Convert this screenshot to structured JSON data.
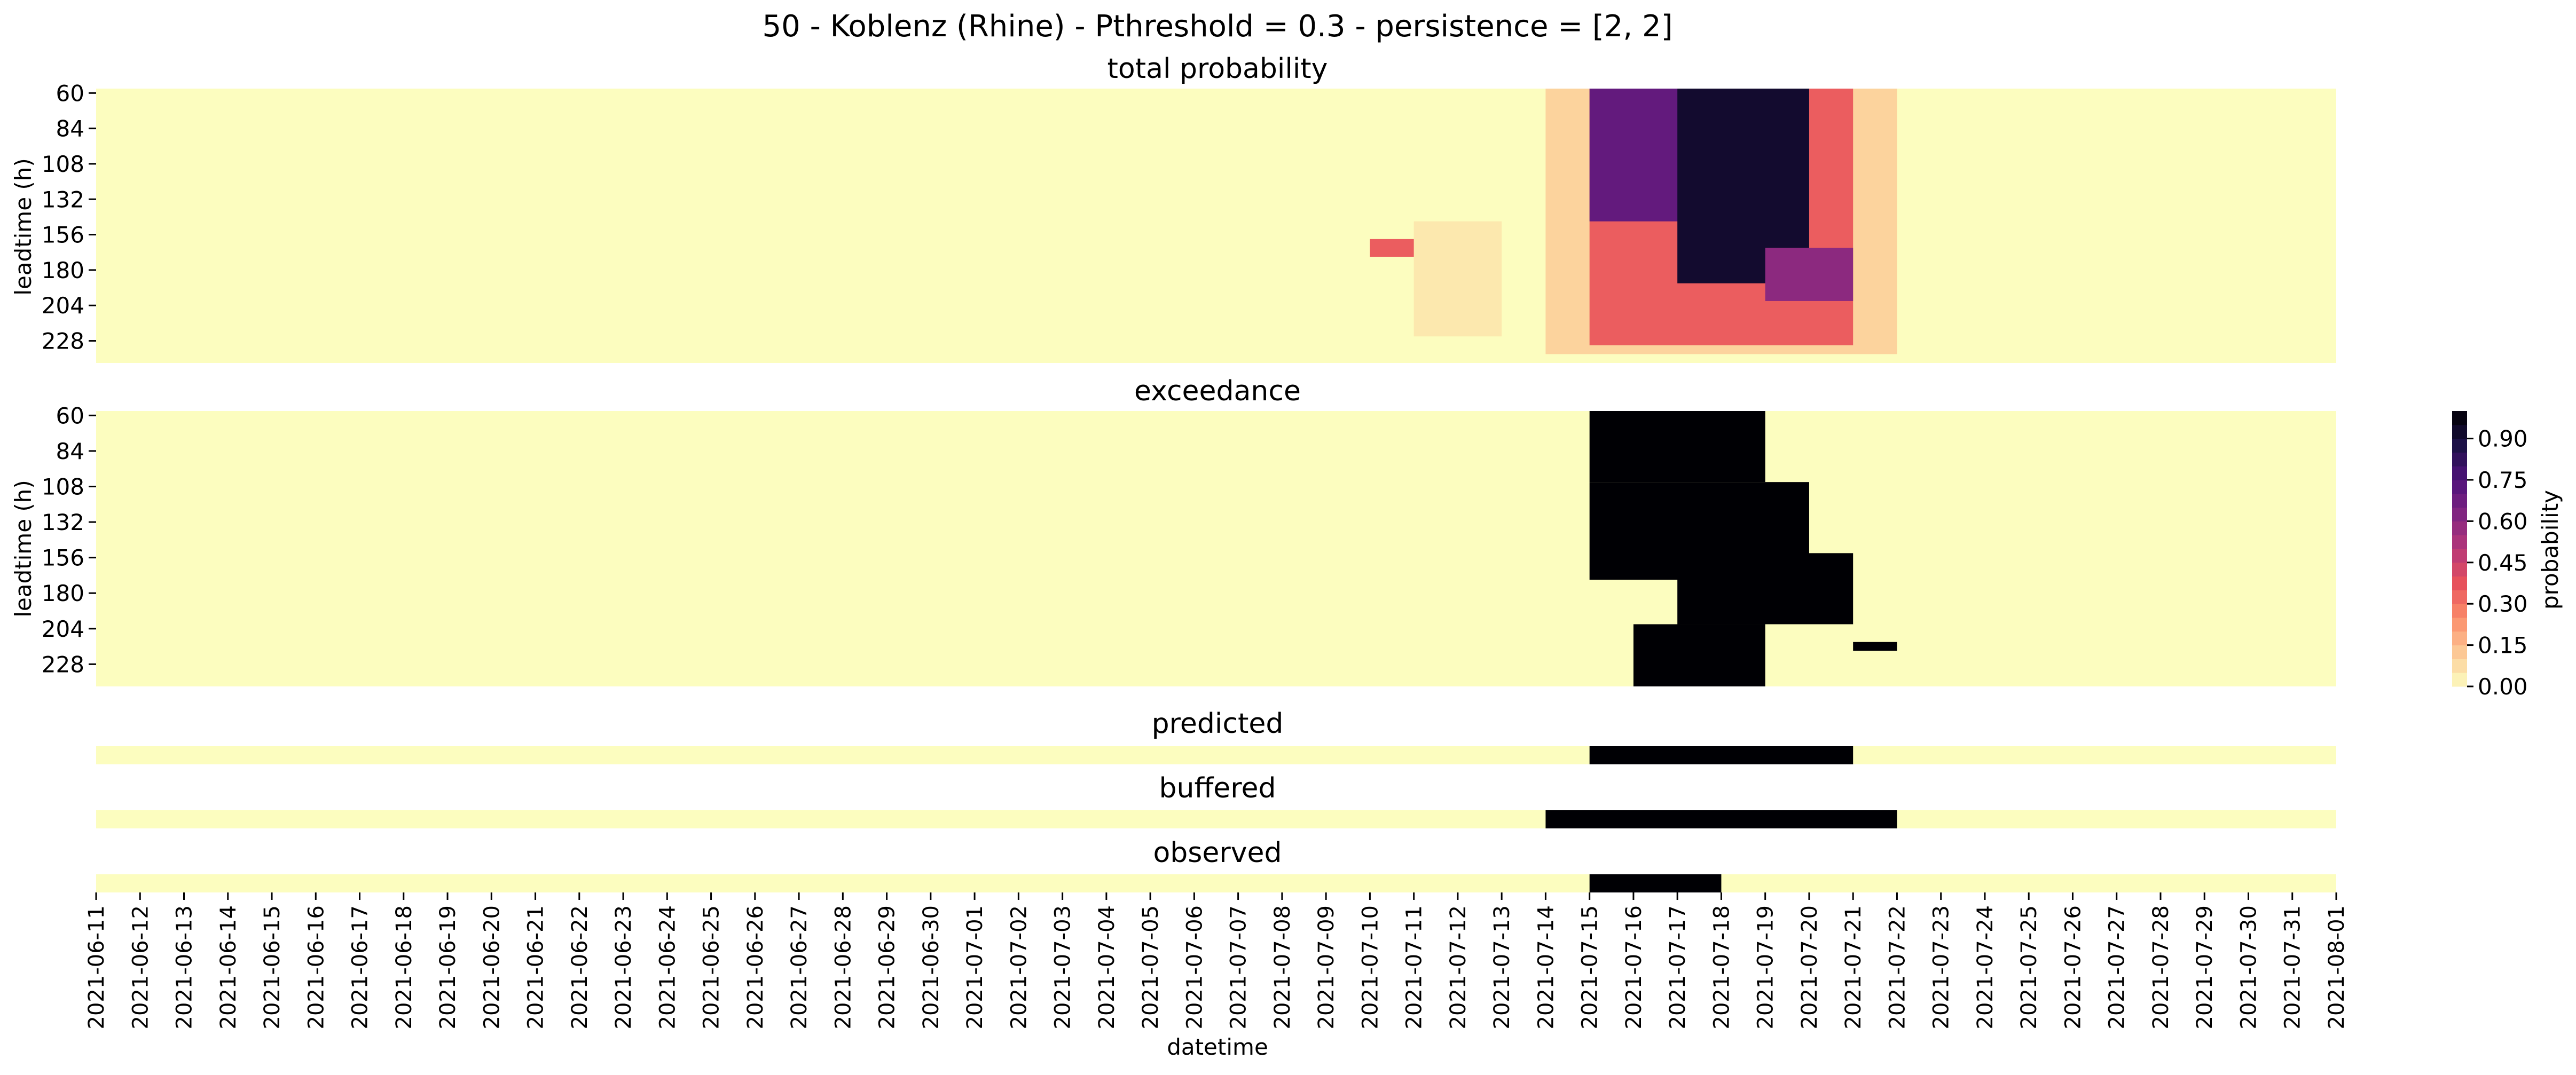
{
  "figure_title": "50 - Koblenz (Rhine) - Pthreshold = 0.3 - persistence = [2, 2]",
  "colormap": {
    "name": "magma_r",
    "stops": [
      "#fcfdbf",
      "#fcc895",
      "#fb8d6a",
      "#e7515c",
      "#b63779",
      "#812581",
      "#4f127b",
      "#1d1147",
      "#000004"
    ]
  },
  "chart_data": [
    {
      "type": "heatmap",
      "title": "total probability",
      "ylabel": "leadtime (h)",
      "xlabel": "",
      "leadtime_rows": [
        60,
        66,
        72,
        78,
        84,
        90,
        96,
        102,
        108,
        114,
        120,
        126,
        132,
        138,
        144,
        150,
        156,
        162,
        168,
        174,
        180,
        186,
        192,
        198,
        204,
        210,
        216,
        222,
        228,
        234,
        240
      ],
      "y_tick_labels": [
        "60",
        "84",
        "108",
        "132",
        "156",
        "180",
        "204",
        "228"
      ],
      "color_range": [
        0,
        1
      ],
      "regions": [
        {
          "date_start": "2021-07-11",
          "date_end": "2021-07-13",
          "leadtime_start": 150,
          "leadtime_end": 228,
          "probability": 0.05
        },
        {
          "date_start": "2021-07-10",
          "date_end": "2021-07-11",
          "leadtime_start": 162,
          "leadtime_end": 174,
          "probability": 0.35
        },
        {
          "date_start": "2021-07-14",
          "date_end": "2021-07-22",
          "leadtime_start": 60,
          "leadtime_end": 240,
          "probability": 0.1
        },
        {
          "date_start": "2021-07-15",
          "date_end": "2021-07-21",
          "leadtime_start": 60,
          "leadtime_end": 234,
          "probability": 0.35
        },
        {
          "date_start": "2021-07-15",
          "date_end": "2021-07-19",
          "leadtime_start": 60,
          "leadtime_end": 150,
          "probability": 0.7
        },
        {
          "date_start": "2021-07-17",
          "date_end": "2021-07-20",
          "leadtime_start": 60,
          "leadtime_end": 192,
          "probability": 0.92
        },
        {
          "date_start": "2021-07-19",
          "date_end": "2021-07-21",
          "leadtime_start": 168,
          "leadtime_end": 204,
          "probability": 0.6
        }
      ]
    },
    {
      "type": "heatmap",
      "title": "exceedance",
      "ylabel": "leadtime (h)",
      "xlabel": "",
      "leadtime_rows": [
        60,
        66,
        72,
        78,
        84,
        90,
        96,
        102,
        108,
        114,
        120,
        126,
        132,
        138,
        144,
        150,
        156,
        162,
        168,
        174,
        180,
        186,
        192,
        198,
        204,
        210,
        216,
        222,
        228,
        234,
        240
      ],
      "y_tick_labels": [
        "60",
        "84",
        "108",
        "132",
        "156",
        "180",
        "204",
        "228"
      ],
      "color_range": [
        0,
        1
      ],
      "regions": [
        {
          "date_start": "2021-07-15",
          "date_end": "2021-07-19",
          "leadtime_start": 60,
          "leadtime_end": 108,
          "probability": 1
        },
        {
          "date_start": "2021-07-15",
          "date_end": "2021-07-20",
          "leadtime_start": 108,
          "leadtime_end": 174,
          "probability": 1
        },
        {
          "date_start": "2021-07-17",
          "date_end": "2021-07-21",
          "leadtime_start": 156,
          "leadtime_end": 204,
          "probability": 1
        },
        {
          "date_start": "2021-07-16",
          "date_end": "2021-07-19",
          "leadtime_start": 204,
          "leadtime_end": 246,
          "probability": 1
        },
        {
          "date_start": "2021-07-21",
          "date_end": "2021-07-22",
          "leadtime_start": 216,
          "leadtime_end": 222,
          "probability": 1
        }
      ]
    },
    {
      "type": "heatmap",
      "title": "predicted",
      "ylabel": "",
      "xlabel": "",
      "color_range": [
        0,
        1
      ],
      "active_start": "2021-07-15",
      "active_end": "2021-07-21",
      "value": 1
    },
    {
      "type": "heatmap",
      "title": "buffered",
      "ylabel": "",
      "xlabel": "",
      "color_range": [
        0,
        1
      ],
      "active_start": "2021-07-14",
      "active_end": "2021-07-22",
      "value": 1
    },
    {
      "type": "heatmap",
      "title": "observed",
      "ylabel": "",
      "xlabel": "datetime",
      "color_range": [
        0,
        1
      ],
      "active_start": "2021-07-15",
      "active_end": "2021-07-18",
      "value": 1,
      "x_tick_labels": [
        "2021-06-11",
        "2021-06-12",
        "2021-06-13",
        "2021-06-14",
        "2021-06-15",
        "2021-06-16",
        "2021-06-17",
        "2021-06-18",
        "2021-06-19",
        "2021-06-20",
        "2021-06-21",
        "2021-06-22",
        "2021-06-23",
        "2021-06-24",
        "2021-06-25",
        "2021-06-26",
        "2021-06-27",
        "2021-06-28",
        "2021-06-29",
        "2021-06-30",
        "2021-07-01",
        "2021-07-02",
        "2021-07-03",
        "2021-07-04",
        "2021-07-05",
        "2021-07-06",
        "2021-07-07",
        "2021-07-08",
        "2021-07-09",
        "2021-07-10",
        "2021-07-11",
        "2021-07-12",
        "2021-07-13",
        "2021-07-14",
        "2021-07-15",
        "2021-07-16",
        "2021-07-17",
        "2021-07-18",
        "2021-07-19",
        "2021-07-20",
        "2021-07-21",
        "2021-07-22",
        "2021-07-23",
        "2021-07-24",
        "2021-07-25",
        "2021-07-26",
        "2021-07-27",
        "2021-07-28",
        "2021-07-29",
        "2021-07-30",
        "2021-07-31",
        "2021-08-01"
      ]
    }
  ],
  "colorbar": {
    "label": "probability",
    "range": [
      0,
      1
    ],
    "ticks": [
      "0.00",
      "0.15",
      "0.30",
      "0.45",
      "0.60",
      "0.75",
      "0.90"
    ]
  }
}
